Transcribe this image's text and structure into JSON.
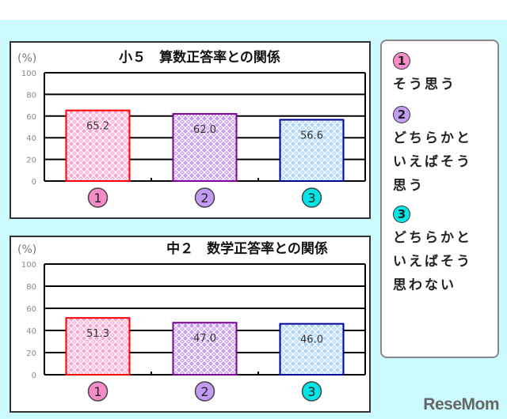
{
  "chart_data": [
    {
      "type": "bar",
      "title": "小５　算数正答率との関係",
      "ylabel": "(%)",
      "ylim": [
        0,
        100
      ],
      "yticks": [
        "0",
        "20",
        "40",
        "60",
        "80",
        "100"
      ],
      "grid": true,
      "categories": [
        "1",
        "2",
        "3"
      ],
      "values": [
        65.2,
        62.0,
        56.6
      ],
      "value_labels": [
        "65.2",
        "62.0",
        "56.6"
      ]
    },
    {
      "type": "bar",
      "title": "中２　数学正答率との関係",
      "ylabel": "(%)",
      "ylim": [
        0,
        100
      ],
      "yticks": [
        "0",
        "20",
        "40",
        "60",
        "80",
        "100"
      ],
      "grid": true,
      "categories": [
        "1",
        "2",
        "3"
      ],
      "values": [
        51.3,
        47.0,
        46.0
      ],
      "value_labels": [
        "51.3",
        "47.0",
        "46.0"
      ]
    }
  ],
  "colors": {
    "cat1_fill": "#f9a6d3",
    "cat1_border": "#ff0000",
    "cat2_fill": "#c99cf0",
    "cat2_border": "#8000a0",
    "cat3_fill": "#a9d4fa",
    "cat3_border": "#000090",
    "badge1": "#f58cc8",
    "badge2": "#c39bf2",
    "badge3": "#00e6e6"
  },
  "legend": [
    {
      "num": "1",
      "text": "そう思う"
    },
    {
      "num": "2",
      "text": "どちらかといえばそう思う"
    },
    {
      "num": "3",
      "text": "どちらかといえばそう思わない"
    }
  ],
  "watermark": "ReseMom"
}
